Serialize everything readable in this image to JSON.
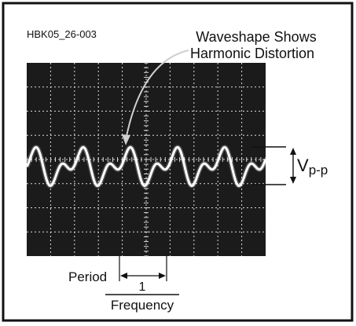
{
  "figure_id": "HBK05_26-003",
  "annotation": {
    "line1": "Waveshape Shows",
    "line2": "Harmonic Distortion"
  },
  "vpp_label": {
    "main": "V",
    "subscript": "p-p"
  },
  "period_label": "Period",
  "fraction": {
    "numerator": "1",
    "denominator": "Frequency"
  },
  "colors": {
    "screen": "#1b1b1b",
    "grid": "#d9d9d9",
    "trace": "#ffffff",
    "ink": "#111111"
  }
}
